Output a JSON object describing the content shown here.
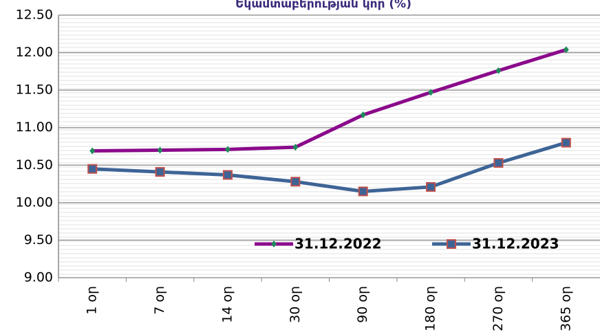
{
  "chart_data": {
    "type": "line",
    "title": "Եկամտաբերության կոր (%)",
    "categories": [
      "1 օր",
      "7 օր",
      "14 օր",
      "30 օր",
      "90 օր",
      "180 օր",
      "270 օր",
      "365 օր"
    ],
    "series": [
      {
        "name": "31.12.2022",
        "color": "#8b0a8b",
        "marker": "diamond",
        "marker_color": "#1f8a5a",
        "values": [
          10.69,
          10.7,
          10.71,
          10.74,
          11.17,
          11.47,
          11.76,
          12.04
        ]
      },
      {
        "name": "31.12.2023",
        "color": "#3e6496",
        "marker": "square",
        "marker_color": "#c0504d",
        "values": [
          10.45,
          10.41,
          10.37,
          10.28,
          10.15,
          10.21,
          10.53,
          10.8
        ]
      }
    ],
    "ylim": [
      9.0,
      12.5
    ],
    "yticks": [
      {
        "value": 9.0,
        "label": "9.00"
      },
      {
        "value": 9.5,
        "label": "9.50"
      },
      {
        "value": 10.0,
        "label": "10.00"
      },
      {
        "value": 10.5,
        "label": "10.50"
      },
      {
        "value": 11.0,
        "label": "11.00"
      },
      {
        "value": 11.5,
        "label": "11.50"
      },
      {
        "value": 12.0,
        "label": "12.00"
      },
      {
        "value": 12.5,
        "label": "12.50"
      }
    ],
    "grid": true
  }
}
